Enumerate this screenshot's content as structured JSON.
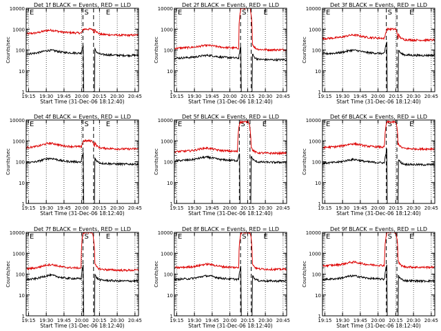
{
  "figure": {
    "xlabel": "Start Time (31-Dec-06 18:12:40)",
    "ylabel": "Counts/sec",
    "xticks": [
      "19:15",
      "19:30",
      "19:45",
      "20:00",
      "20:15",
      "20:30",
      "20:45"
    ],
    "yticks": [
      "1",
      "10",
      "100",
      "1000",
      "10000"
    ],
    "markers": [
      "E",
      "S",
      "E"
    ],
    "colors": {
      "events": "#000000",
      "lld": "#dd0000"
    }
  },
  "chart_data": [
    {
      "type": "line",
      "title": "Det 1f BLACK = Events, RED = LLD",
      "xlim": [
        "19:13",
        "20:48"
      ],
      "yscale": "log",
      "ylim": [
        1,
        10000
      ],
      "intervals": [
        "20:01",
        "20:10"
      ],
      "lld_base": 600,
      "events_base": 65,
      "lld_peak": 1000,
      "events_peak": 180,
      "saturates": false,
      "bump": 1.3
    },
    {
      "type": "line",
      "title": "Det 2f BLACK = Events, RED = LLD",
      "xlim": [
        "19:13",
        "20:48"
      ],
      "yscale": "log",
      "ylim": [
        1,
        10000
      ],
      "intervals": [
        "20:09",
        "20:18"
      ],
      "lld_base": 120,
      "events_base": 40,
      "lld_peak": 10000,
      "events_peak": 150,
      "saturates": true,
      "bump": 1.2
    },
    {
      "type": "line",
      "title": "Det 3f BLACK = Events, RED = LLD",
      "xlim": [
        "19:13",
        "20:48"
      ],
      "yscale": "log",
      "ylim": [
        1,
        10000
      ],
      "intervals": [
        "20:07",
        "20:16"
      ],
      "lld_base": 350,
      "events_base": 65,
      "lld_peak": 1000,
      "events_peak": 250,
      "saturates": false,
      "bump": 1.3
    },
    {
      "type": "line",
      "title": "Det 4f BLACK = Events, RED = LLD",
      "xlim": [
        "19:13",
        "20:48"
      ],
      "yscale": "log",
      "ylim": [
        1,
        10000
      ],
      "intervals": [
        "20:01",
        "20:10"
      ],
      "lld_base": 480,
      "events_base": 90,
      "lld_peak": 1000,
      "events_peak": 300,
      "saturates": false,
      "bump": 1.4
    },
    {
      "type": "line",
      "title": "Det 5f BLACK = Events, RED = LLD",
      "xlim": [
        "19:13",
        "20:48"
      ],
      "yscale": "log",
      "ylim": [
        1,
        10000
      ],
      "intervals": [
        "20:08",
        "20:17"
      ],
      "lld_base": 300,
      "events_base": 110,
      "lld_peak": 8000,
      "events_peak": 300,
      "saturates": false,
      "bump": 1.3
    },
    {
      "type": "line",
      "title": "Det 6f BLACK = Events, RED = LLD",
      "xlim": [
        "19:13",
        "20:48"
      ],
      "yscale": "log",
      "ylim": [
        1,
        10000
      ],
      "intervals": [
        "20:07",
        "20:16"
      ],
      "lld_base": 480,
      "events_base": 85,
      "lld_peak": 8000,
      "events_peak": 400,
      "saturates": false,
      "bump": 1.3
    },
    {
      "type": "line",
      "title": "Det 7f BLACK = Events, RED = LLD",
      "xlim": [
        "19:13",
        "20:48"
      ],
      "yscale": "log",
      "ylim": [
        1,
        10000
      ],
      "intervals": [
        "20:01",
        "20:10"
      ],
      "lld_base": 180,
      "events_base": 55,
      "lld_peak": 10000,
      "events_peak": 300,
      "saturates": true,
      "bump": 1.4
    },
    {
      "type": "line",
      "title": "Det 8f BLACK = Events, RED = LLD",
      "xlim": [
        "19:13",
        "20:48"
      ],
      "yscale": "log",
      "ylim": [
        1,
        10000
      ],
      "intervals": [
        "20:09",
        "20:18"
      ],
      "lld_base": 200,
      "events_base": 55,
      "lld_peak": 10000,
      "events_peak": 250,
      "saturates": true,
      "bump": 1.3
    },
    {
      "type": "line",
      "title": "Det 9f BLACK = Events, RED = LLD",
      "xlim": [
        "19:13",
        "20:48"
      ],
      "yscale": "log",
      "ylim": [
        1,
        10000
      ],
      "intervals": [
        "20:07",
        "20:16"
      ],
      "lld_base": 250,
      "events_base": 55,
      "lld_peak": 10000,
      "events_peak": 300,
      "saturates": true,
      "bump": 1.3
    }
  ]
}
